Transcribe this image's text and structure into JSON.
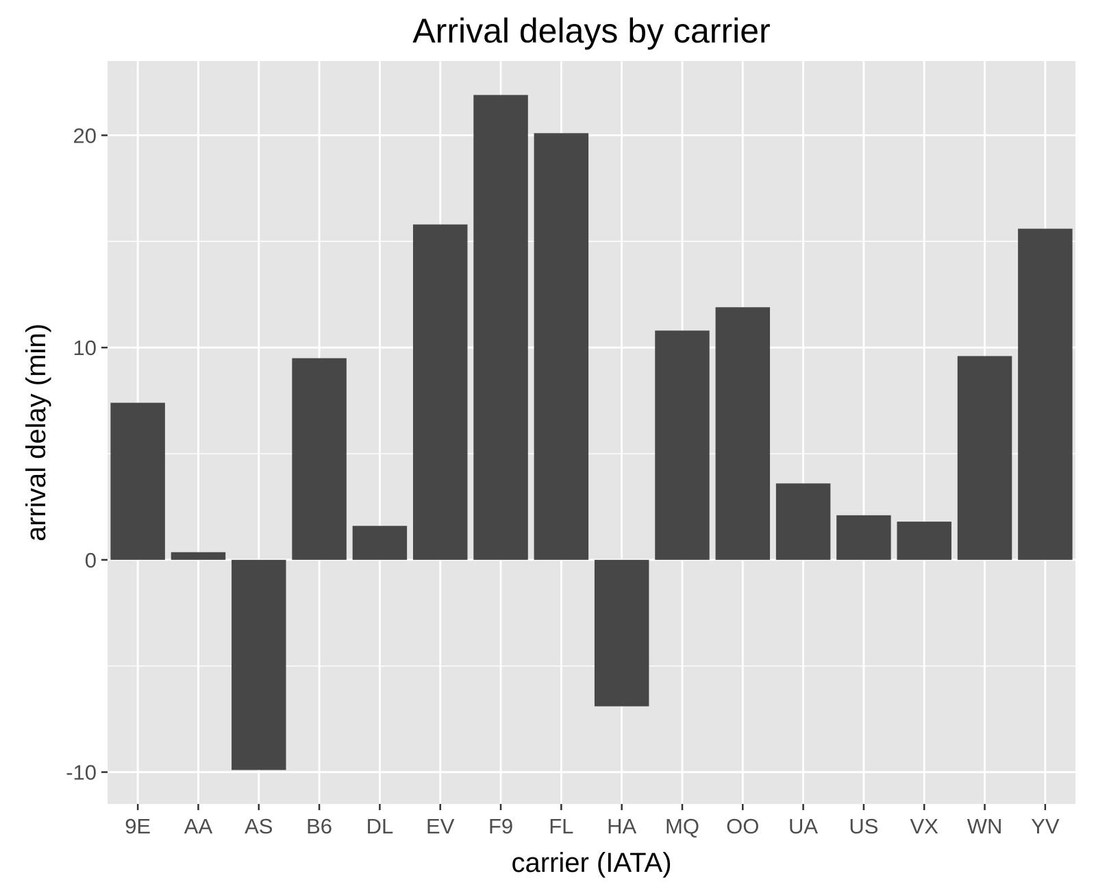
{
  "chart_data": {
    "type": "bar",
    "title": "Arrival delays by carrier",
    "xlabel": "carrier (IATA)",
    "ylabel": "arrival delay (min)",
    "categories": [
      "9E",
      "AA",
      "AS",
      "B6",
      "DL",
      "EV",
      "F9",
      "FL",
      "HA",
      "MQ",
      "OO",
      "UA",
      "US",
      "VX",
      "WN",
      "YV"
    ],
    "values": [
      7.4,
      0.36,
      -9.9,
      9.5,
      1.6,
      15.8,
      21.9,
      20.1,
      -6.9,
      10.8,
      11.9,
      3.6,
      2.1,
      1.8,
      9.6,
      15.6
    ],
    "ylim": [
      -11.5,
      23.5
    ],
    "yticks": [
      -10,
      0,
      10,
      20
    ],
    "ytick_labels": [
      "-10",
      "0",
      "10",
      "20"
    ],
    "grid": true,
    "colors": {
      "panel": "#e5e5e5",
      "grid_major": "#ffffff",
      "bar": "#474747",
      "tick": "#333333"
    }
  }
}
